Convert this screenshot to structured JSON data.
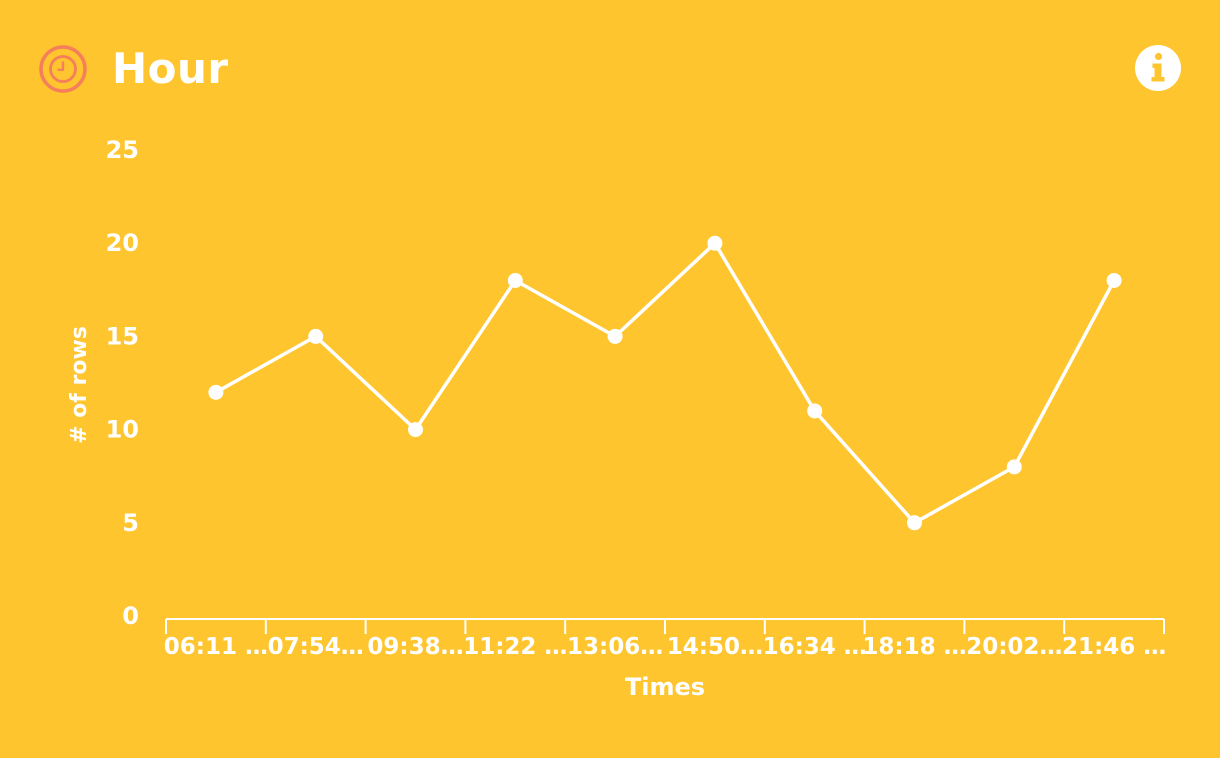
{
  "header": {
    "title": "Hour",
    "icon": "clock-icon",
    "info_icon": "info-icon"
  },
  "colors": {
    "background": "#FEC52E",
    "foreground": "#FFFFFF",
    "icon_accent": "#F57F5B"
  },
  "chart_data": {
    "type": "line",
    "title": "Hour",
    "xlabel": "Times",
    "ylabel": "# of rows",
    "categories": [
      "06:11 …",
      "07:54…",
      "09:38…",
      "11:22 …",
      "13:06…",
      "14:50…",
      "16:34 …",
      "18:18 …",
      "20:02…",
      "21:46 …"
    ],
    "values": [
      12,
      15,
      10,
      18,
      15,
      20,
      11,
      5,
      8,
      18
    ],
    "ylim": [
      0,
      25
    ],
    "yticks": [
      0,
      5,
      10,
      15,
      20,
      25
    ],
    "grid": false,
    "legend": "none"
  }
}
